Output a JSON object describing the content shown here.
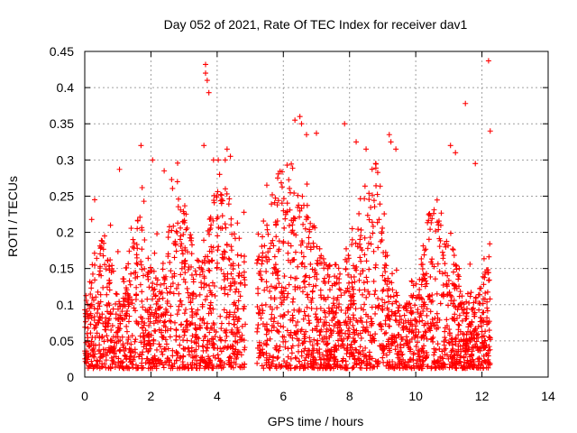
{
  "chart_data": {
    "type": "scatter",
    "title": "Day 052 of 2021, Rate Of TEC Index for receiver dav1",
    "xlabel": "GPS time / hours",
    "ylabel": "ROTI / TECUs",
    "xlim": [
      0,
      14
    ],
    "ylim": [
      0,
      0.45
    ],
    "xticks": [
      "0",
      "2",
      "4",
      "6",
      "8",
      "10",
      "12",
      "14"
    ],
    "yticks": [
      "0",
      "0.05",
      "0.1",
      "0.15",
      "0.2",
      "0.25",
      "0.3",
      "0.35",
      "0.4",
      "0.45"
    ],
    "grid": true,
    "marker": "+",
    "color": "#ff0000",
    "segments": [
      {
        "x_start": 0.0,
        "x_end": 4.85
      },
      {
        "x_start": 5.2,
        "x_end": 12.25
      }
    ],
    "notable_points": [
      [
        0.3,
        0.245
      ],
      [
        0.6,
        0.195
      ],
      [
        1.05,
        0.287
      ],
      [
        1.7,
        0.32
      ],
      [
        2.05,
        0.3
      ],
      [
        2.4,
        0.285
      ],
      [
        2.8,
        0.27
      ],
      [
        3.65,
        0.432
      ],
      [
        3.65,
        0.42
      ],
      [
        3.7,
        0.41
      ],
      [
        3.75,
        0.393
      ],
      [
        3.6,
        0.32
      ],
      [
        4.3,
        0.315
      ],
      [
        4.4,
        0.305
      ],
      [
        6.35,
        0.355
      ],
      [
        6.5,
        0.36
      ],
      [
        6.55,
        0.35
      ],
      [
        6.7,
        0.335
      ],
      [
        7.0,
        0.337
      ],
      [
        7.85,
        0.35
      ],
      [
        8.2,
        0.325
      ],
      [
        8.5,
        0.315
      ],
      [
        9.2,
        0.335
      ],
      [
        9.25,
        0.325
      ],
      [
        9.4,
        0.315
      ],
      [
        11.05,
        0.32
      ],
      [
        11.2,
        0.31
      ],
      [
        11.5,
        0.378
      ],
      [
        11.8,
        0.295
      ],
      [
        12.2,
        0.437
      ],
      [
        12.25,
        0.34
      ]
    ]
  }
}
